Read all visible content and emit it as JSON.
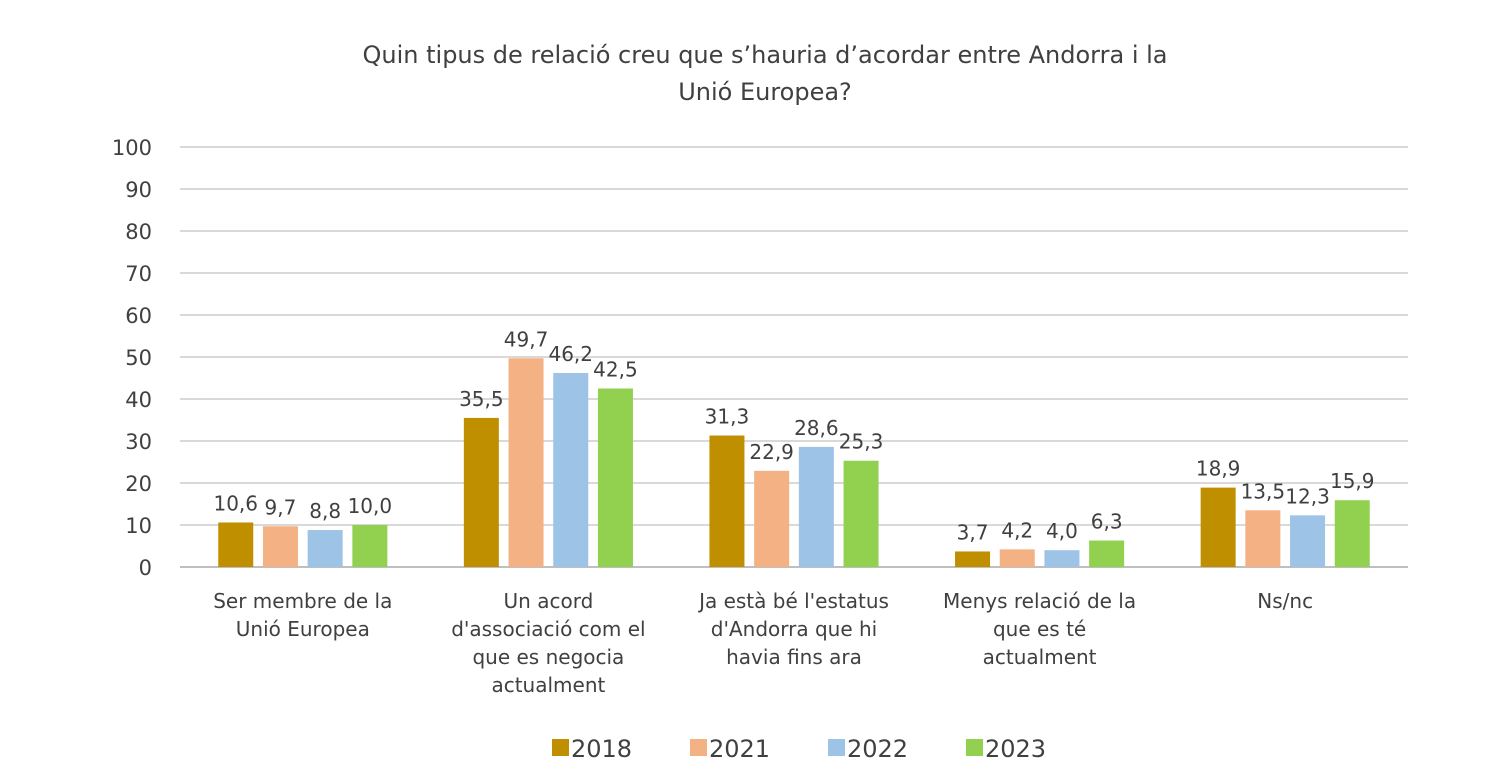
{
  "chart_data": {
    "type": "bar",
    "title": "Quin tipus de relació creu que s’hauria d’acordar entre Andorra i la Unió Europea?",
    "title_lines": [
      "Quin tipus de relació creu que s’hauria d’acordar entre Andorra i la",
      "Unió Europea?"
    ],
    "categories": [
      [
        "Ser membre de la",
        "Unió Europea"
      ],
      [
        "Un acord",
        "d'associació com el",
        "que es negocia",
        "actualment"
      ],
      [
        "Ja està bé l'estatus",
        "d'Andorra que hi",
        "havia fins ara"
      ],
      [
        "Menys relació de la",
        "que es té",
        "actualment"
      ],
      [
        "Ns/nc"
      ]
    ],
    "series": [
      {
        "name": "2018",
        "color": "#BF8F00",
        "values": [
          10.6,
          35.5,
          31.3,
          3.7,
          18.9
        ],
        "labels": [
          "10,6",
          "35,5",
          "31,3",
          "3,7",
          "18,9"
        ]
      },
      {
        "name": "2021",
        "color": "#F4B183",
        "values": [
          9.7,
          49.7,
          22.9,
          4.2,
          13.5
        ],
        "labels": [
          "9,7",
          "49,7",
          "22,9",
          "4,2",
          "13,5"
        ]
      },
      {
        "name": "2022",
        "color": "#9DC3E6",
        "values": [
          8.8,
          46.2,
          28.6,
          4.0,
          12.3
        ],
        "labels": [
          "8,8",
          "46,2",
          "28,6",
          "4,0",
          "12,3"
        ]
      },
      {
        "name": "2023",
        "color": "#92D050",
        "values": [
          10.0,
          42.5,
          25.3,
          6.3,
          15.9
        ],
        "labels": [
          "10,0",
          "42,5",
          "25,3",
          "6,3",
          "15,9"
        ]
      }
    ],
    "ylim": [
      0,
      100
    ],
    "yticks": [
      "0",
      "10",
      "20",
      "30",
      "40",
      "50",
      "60",
      "70",
      "80",
      "90",
      "100"
    ],
    "grid": true,
    "legend_position": "bottom",
    "xlabel": "",
    "ylabel": ""
  }
}
